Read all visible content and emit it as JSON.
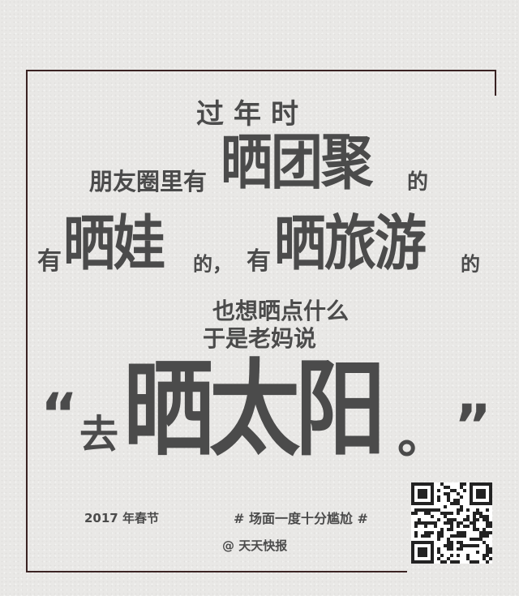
{
  "line1": "过年时",
  "line2": {
    "pre": "朋友圈里有",
    "big": "晒团聚",
    "post": "的"
  },
  "line3": {
    "pre1": "有",
    "big1": "晒娃",
    "post1": "的，",
    "pre2": "有",
    "big2": "晒旅游",
    "post2": "的"
  },
  "line4": "也想晒点什么",
  "line5": "于是老妈说",
  "quote": {
    "open": "“",
    "pre": "去",
    "big": "晒太阳",
    "post": "。",
    "close": "”"
  },
  "footer": {
    "date": "2017 年春节",
    "hashtag": "# 场面一度十分尴尬 #",
    "brand": "@ 天天快报"
  },
  "qr_icon": "qr-code-icon"
}
